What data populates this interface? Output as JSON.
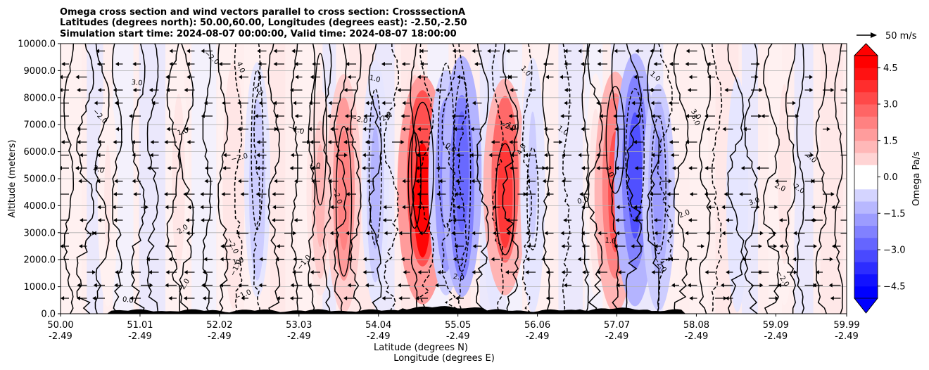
{
  "chart_data": {
    "type": "contour",
    "title_lines": [
      "Omega cross section and wind vectors parallel to cross section: CrosssectionA",
      "Latitudes (degrees north): 50.00,60.00, Longitudes (degrees east): -2.50,-2.50",
      "Simulation start time: 2024-08-07 00:00:00, Valid time: 2024-08-07 18:00:00"
    ],
    "ylabel": "Altitude (meters)",
    "xlabel_lat": "Latitude (degrees N)",
    "xlabel_lon": "Longitude (degrees E)",
    "y_ticks": [
      "0.0",
      "1000.0",
      "2000.0",
      "3000.0",
      "4000.0",
      "5000.0",
      "6000.0",
      "7000.0",
      "8000.0",
      "9000.0",
      "10000.0"
    ],
    "ylim": [
      0,
      10000
    ],
    "x_ticks_lat": [
      "50.00",
      "51.01",
      "52.02",
      "53.03",
      "54.04",
      "55.05",
      "56.06",
      "57.07",
      "58.08",
      "59.09",
      "59.99"
    ],
    "x_ticks_lon": [
      "-2.49",
      "-2.49",
      "-2.49",
      "-2.49",
      "-2.49",
      "-2.49",
      "-2.49",
      "-2.49",
      "-2.49",
      "-2.49",
      "-2.49"
    ],
    "xlim": [
      50.0,
      59.99
    ],
    "grid": true,
    "colorbar": {
      "label": "Omega Pa/s",
      "ticks": [
        "4.5",
        "3.0",
        "1.5",
        "0.0",
        "−1.5",
        "−3.0",
        "−4.5"
      ],
      "tick_values": [
        4.5,
        3.0,
        1.5,
        0.0,
        -1.5,
        -3.0,
        -4.5
      ],
      "range": [
        -5.0,
        5.0
      ],
      "levels": 20,
      "neg_color": "#0000ff",
      "pos_color": "#ff0000",
      "extend": "both"
    },
    "vector_key": {
      "label": "50 m/s",
      "value": 50
    },
    "contour_labels": [
      "1.0",
      "0.0",
      "2.0",
      "−1.0",
      "3.0",
      "−2.0",
      "4.0"
    ],
    "omega_bands": [
      {
        "lat": 50.6,
        "value": 0.3
      },
      {
        "lat": 51.5,
        "value": 0.4
      },
      {
        "lat": 52.2,
        "value": 0.6
      },
      {
        "lat": 52.5,
        "value": -1.2
      },
      {
        "lat": 53.3,
        "value": 1.4
      },
      {
        "lat": 53.6,
        "value": 2.5
      },
      {
        "lat": 54.0,
        "value": -1.4
      },
      {
        "lat": 54.5,
        "value": 1.5
      },
      {
        "lat": 54.6,
        "value": 4.8
      },
      {
        "lat": 54.9,
        "value": -2.6
      },
      {
        "lat": 55.1,
        "value": -3.2
      },
      {
        "lat": 55.5,
        "value": -0.8
      },
      {
        "lat": 55.65,
        "value": 3.8
      },
      {
        "lat": 56.0,
        "value": -1.0
      },
      {
        "lat": 56.8,
        "value": 0.4
      },
      {
        "lat": 57.05,
        "value": 3.5
      },
      {
        "lat": 57.3,
        "value": -3.5
      },
      {
        "lat": 57.6,
        "value": -2.2
      },
      {
        "lat": 58.6,
        "value": -0.6
      },
      {
        "lat": 59.2,
        "value": 0.4
      }
    ]
  }
}
